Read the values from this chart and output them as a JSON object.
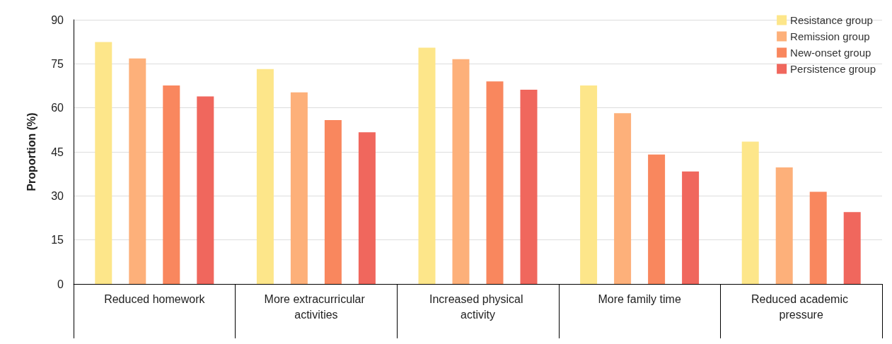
{
  "chart_data": {
    "type": "bar",
    "ylabel": "Proportion (%)",
    "categories": [
      "Reduced homework",
      "More extracurricular activities",
      "Increased physical activity",
      "More family time",
      "Reduced academic pressure"
    ],
    "series": [
      {
        "name": "Resistance group",
        "color": "#fde68a",
        "values": [
          82.4,
          73.2,
          80.5,
          67.6,
          48.5
        ]
      },
      {
        "name": "Remission group",
        "color": "#fdb07a",
        "values": [
          76.8,
          65.3,
          76.6,
          58.2,
          39.7
        ]
      },
      {
        "name": "New-onset group",
        "color": "#f9875e",
        "values": [
          67.6,
          55.8,
          69,
          44.1,
          31.4
        ]
      },
      {
        "name": "Persistence group",
        "color": "#f0675d",
        "values": [
          63.9,
          51.7,
          66.2,
          38.3,
          24.5
        ]
      }
    ],
    "ylim": [
      0,
      90
    ],
    "yticks": [
      0,
      15,
      30,
      45,
      60,
      75,
      90
    ],
    "grid": "y",
    "legend": "top right"
  }
}
